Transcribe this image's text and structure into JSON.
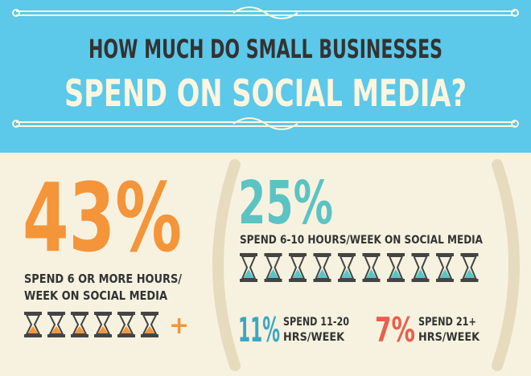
{
  "header": {
    "title_line1": "HOW MUCH DO SMALL BUSINESSES",
    "title_line2": "SPEND ON SOCIAL MEDIA?"
  },
  "main": {
    "percent": "43%",
    "caption": [
      "SPEND 6 OR MORE HOURS/",
      "WEEK ON SOCIAL MEDIA"
    ],
    "plus": "+"
  },
  "breakdown": [
    {
      "percent": "25%",
      "caption": [
        "SPEND 6-10 HOURS/WEEK ON SOCIAL MEDIA"
      ]
    },
    {
      "percent": "11%",
      "caption": [
        "SPEND 11-20",
        "HRS/WEEK"
      ]
    },
    {
      "percent": "7%",
      "caption": [
        "SPEND 21+",
        "HRS/WEEK"
      ]
    }
  ]
}
